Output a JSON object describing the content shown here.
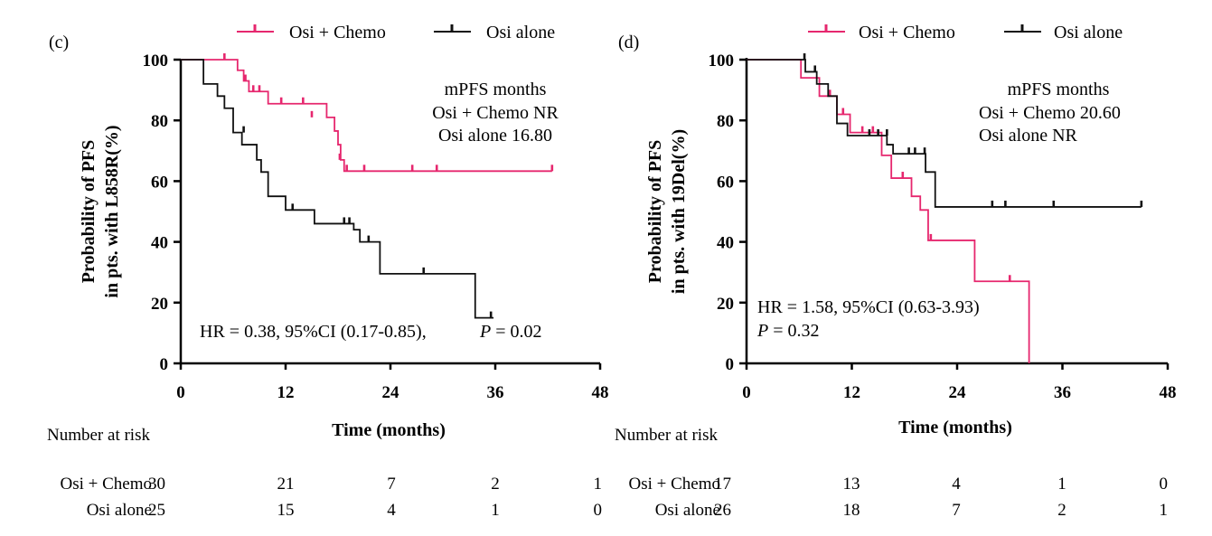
{
  "chart_data": [
    {
      "type": "line",
      "subtype": "kaplan-meier",
      "panel_label": "(c)",
      "xlabel": "Time (months)",
      "ylabel_lines": [
        "Probability of PFS",
        "in pts. with L858R(%)"
      ],
      "xlim": [
        0,
        48
      ],
      "ylim": [
        0,
        100
      ],
      "xticks": [
        "0",
        "12",
        "24",
        "36",
        "48"
      ],
      "yticks": [
        "0",
        "20",
        "40",
        "60",
        "80",
        "100"
      ],
      "legend": [
        {
          "name": "Osi + Chemo",
          "color": "#e6276e"
        },
        {
          "name": "Osi alone",
          "color": "#111111"
        }
      ],
      "series": [
        {
          "name": "Osi + Chemo",
          "color": "#e6276e",
          "steps": [
            [
              0,
              100
            ],
            [
              6.5,
              96.5
            ],
            [
              7.2,
              93
            ],
            [
              7.8,
              89.5
            ],
            [
              10.0,
              85.5
            ],
            [
              16.7,
              81
            ],
            [
              17.6,
              76.5
            ],
            [
              18.0,
              72
            ],
            [
              18.3,
              67
            ],
            [
              18.7,
              63.3
            ],
            [
              42.5,
              63.3
            ]
          ],
          "censors": [
            [
              5.0,
              100
            ],
            [
              7.4,
              93
            ],
            [
              8.3,
              89.5
            ],
            [
              9.0,
              89.5
            ],
            [
              11.5,
              85.5
            ],
            [
              14.0,
              85.5
            ],
            [
              15.0,
              81
            ],
            [
              18.2,
              67
            ],
            [
              19.0,
              63.3
            ],
            [
              21.0,
              63.3
            ],
            [
              26.5,
              63.3
            ],
            [
              29.3,
              63.3
            ],
            [
              42.5,
              63.3
            ]
          ]
        },
        {
          "name": "Osi alone",
          "color": "#111111",
          "steps": [
            [
              0,
              100
            ],
            [
              2.6,
              92
            ],
            [
              4.2,
              88
            ],
            [
              5.0,
              84
            ],
            [
              6.0,
              76
            ],
            [
              7.0,
              72
            ],
            [
              8.7,
              67
            ],
            [
              9.2,
              63
            ],
            [
              10.0,
              55
            ],
            [
              12.0,
              50.5
            ],
            [
              15.3,
              46
            ],
            [
              19.8,
              44
            ],
            [
              20.5,
              40
            ],
            [
              22.8,
              29.5
            ],
            [
              33.7,
              15
            ],
            [
              35.8,
              15
            ]
          ],
          "censors": [
            [
              7.2,
              76
            ],
            [
              12.8,
              50.5
            ],
            [
              18.7,
              46
            ],
            [
              19.3,
              46
            ],
            [
              21.5,
              40
            ],
            [
              27.8,
              29.5
            ],
            [
              35.5,
              15
            ]
          ]
        }
      ],
      "annotation_lines": [
        "mPFS  months",
        "Osi + Chemo  NR",
        "Osi alone  16.80"
      ],
      "hr_text": "HR = 0.38, 95%CI (0.17-0.85),",
      "p_symbol": "P",
      "p_value": " = 0.02",
      "risk_table": {
        "title": "Number at risk",
        "rows": [
          {
            "label": "Osi + Chemo",
            "values": [
              "30",
              "21",
              "7",
              "2",
              "1"
            ]
          },
          {
            "label": "Osi alone",
            "values": [
              "25",
              "15",
              "4",
              "1",
              "0"
            ]
          }
        ]
      }
    },
    {
      "type": "line",
      "subtype": "kaplan-meier",
      "panel_label": "(d)",
      "xlabel": "Time (months)",
      "ylabel_lines": [
        "Probability of PFS",
        "in pts. with 19Del(%)"
      ],
      "xlim": [
        0,
        48
      ],
      "ylim": [
        0,
        100
      ],
      "xticks": [
        "0",
        "12",
        "24",
        "36",
        "48"
      ],
      "yticks": [
        "0",
        "20",
        "40",
        "60",
        "80",
        "100"
      ],
      "legend": [
        {
          "name": "Osi + Chemo",
          "color": "#e6276e"
        },
        {
          "name": "Osi alone",
          "color": "#111111"
        }
      ],
      "series": [
        {
          "name": "Osi + Chemo",
          "color": "#e6276e",
          "steps": [
            [
              0,
              100
            ],
            [
              6.2,
              94
            ],
            [
              8.3,
              88
            ],
            [
              10.3,
              82
            ],
            [
              11.8,
              76
            ],
            [
              15.4,
              68.5
            ],
            [
              16.5,
              61
            ],
            [
              18.8,
              55
            ],
            [
              19.8,
              50.5
            ],
            [
              20.7,
              40.5
            ],
            [
              26.0,
              27
            ],
            [
              32.2,
              0
            ],
            [
              32.2,
              0
            ]
          ],
          "censors": [
            [
              9.5,
              88
            ],
            [
              11.0,
              82
            ],
            [
              13.2,
              76
            ],
            [
              14.4,
              76
            ],
            [
              17.8,
              61
            ],
            [
              21.0,
              40.5
            ],
            [
              30.0,
              27
            ]
          ]
        },
        {
          "name": "Osi alone",
          "color": "#111111",
          "steps": [
            [
              0,
              100
            ],
            [
              6.7,
              96
            ],
            [
              8.0,
              92
            ],
            [
              9.3,
              88
            ],
            [
              10.3,
              79
            ],
            [
              11.5,
              75
            ],
            [
              16.0,
              72
            ],
            [
              16.7,
              69
            ],
            [
              20.4,
              63
            ],
            [
              21.5,
              51.5
            ],
            [
              45.0,
              51.5
            ]
          ],
          "censors": [
            [
              6.6,
              100
            ],
            [
              7.8,
              96
            ],
            [
              14.0,
              75
            ],
            [
              15.0,
              75
            ],
            [
              16.0,
              75
            ],
            [
              18.5,
              69
            ],
            [
              19.2,
              69
            ],
            [
              20.3,
              69
            ],
            [
              28.0,
              51.5
            ],
            [
              29.5,
              51.5
            ],
            [
              35.0,
              51.5
            ],
            [
              45.0,
              51.5
            ]
          ]
        }
      ],
      "annotation_lines": [
        "mPFS  months",
        "Osi + Chemo  20.60",
        "Osi alone  NR"
      ],
      "hr_text": "HR = 1.58, 95%CI (0.63-3.93)",
      "p_symbol": "P",
      "p_value": " = 0.32",
      "risk_table": {
        "title": "Number at risk",
        "rows": [
          {
            "label": "Osi + Chemo",
            "values": [
              "17",
              "13",
              "4",
              "1",
              "0"
            ]
          },
          {
            "label": "Osi alone",
            "values": [
              "26",
              "18",
              "7",
              "2",
              "1"
            ]
          }
        ]
      }
    }
  ]
}
